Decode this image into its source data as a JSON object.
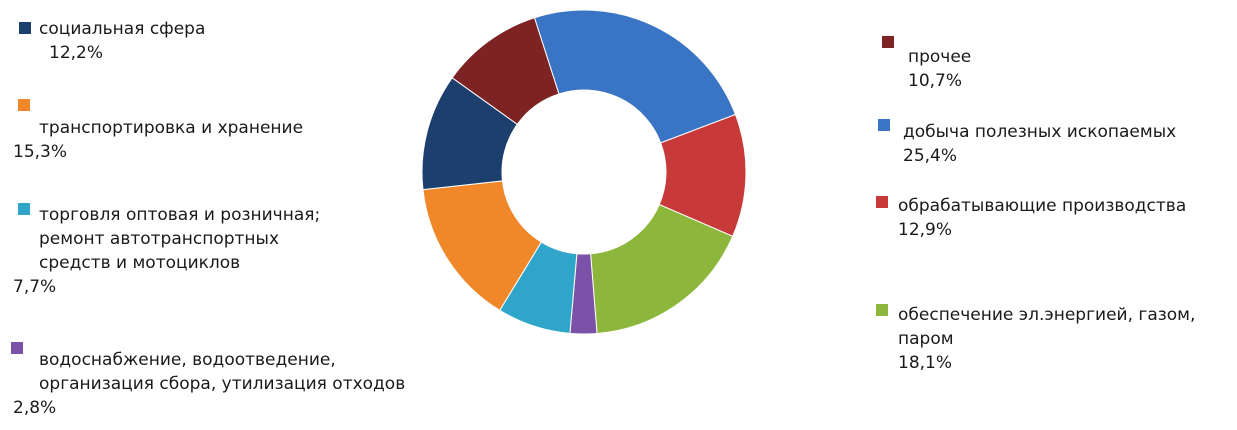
{
  "chart_data": {
    "type": "pie",
    "variant": "donut",
    "start_angle_deg": -17.8,
    "slices": [
      {
        "label": "добыча полезных ископаемых",
        "value": 25.4,
        "value_label": "25,4%",
        "color": "#3a74c4"
      },
      {
        "label": "обрабатывающие производства",
        "value": 12.9,
        "value_label": "12,9%",
        "color": "#c83a3a"
      },
      {
        "label": "обеспечение эл.энергией, газом, паром",
        "value": 18.1,
        "value_label": "18,1%",
        "color": "#8db63c"
      },
      {
        "label": "водоснабжение, водоотведение, организация сбора, утилизация отходов",
        "value": 2.8,
        "value_label": "2,8%",
        "color": "#7c52a8"
      },
      {
        "label": "торговля оптовая и розничная; ремонт автотранспортных средств и мотоциклов",
        "value": 7.7,
        "value_label": "7,7%",
        "color": "#2fa6c9"
      },
      {
        "label": "транспортировка и хранение",
        "value": 15.3,
        "value_label": "15,3%",
        "color": "#f0882a"
      },
      {
        "label": "социальная сфера",
        "value": 12.2,
        "value_label": "12,2%",
        "color": "#1c3f6e"
      },
      {
        "label": "прочее",
        "value": 10.7,
        "value_label": "10,7%",
        "color": "#7e2323"
      }
    ]
  },
  "legend": [
    {
      "lines": [
        "социальная сфера"
      ],
      "pct": "12,2%",
      "color": "#1c3f6e"
    },
    {
      "lines": [
        "транспортировка и хранение"
      ],
      "pct": "15,3%",
      "color": "#f0882a"
    },
    {
      "lines": [
        "торговля оптовая и розничная;",
        "ремонт автотранспортных",
        "средств и мотоциклов"
      ],
      "pct": "7,7%",
      "color": "#2fa6c9"
    },
    {
      "lines": [
        "водоснабжение, водоотведение,",
        "организация сбора, утилизация отходов"
      ],
      "pct": "2,8%",
      "color": "#7c52a8"
    },
    {
      "lines": [
        "прочее"
      ],
      "pct": "10,7%",
      "color": "#7e2323"
    },
    {
      "lines": [
        "добыча полезных ископаемых"
      ],
      "pct": "25,4%",
      "color": "#3a74c4"
    },
    {
      "lines": [
        "обрабатывающие производства"
      ],
      "pct": "12,9%",
      "color": "#c83a3a"
    },
    {
      "lines": [
        "обеспечение эл.энергией, газом,",
        "паром"
      ],
      "pct": "18,1%",
      "color": "#8db63c"
    }
  ]
}
